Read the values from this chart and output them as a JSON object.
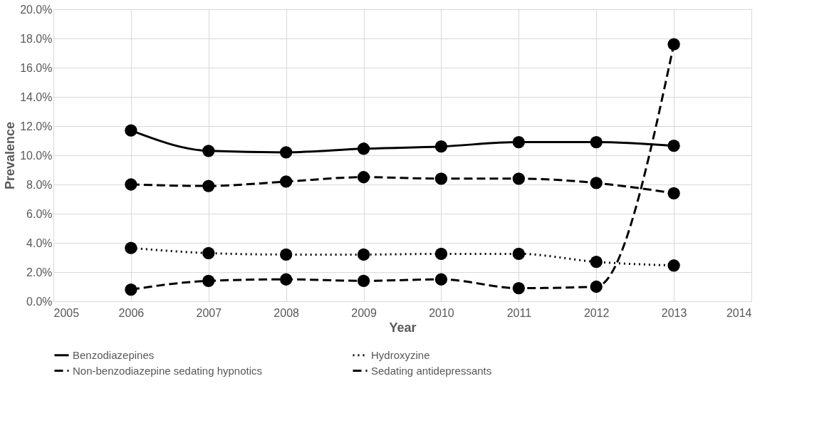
{
  "chart_data": {
    "type": "line",
    "xlabel": "Year",
    "ylabel": "Prevalence",
    "x": [
      2006,
      2007,
      2008,
      2009,
      2010,
      2011,
      2012,
      2013
    ],
    "xlim": [
      2005,
      2014
    ],
    "xticks": [
      2005,
      2006,
      2007,
      2008,
      2009,
      2010,
      2011,
      2012,
      2013,
      2014
    ],
    "ylim": [
      0,
      20
    ],
    "yticks": [
      {
        "value": 0,
        "label": "0.0%"
      },
      {
        "value": 2,
        "label": "2.0%"
      },
      {
        "value": 4,
        "label": "4.0%"
      },
      {
        "value": 6,
        "label": "6.0%"
      },
      {
        "value": 8,
        "label": "8.0%"
      },
      {
        "value": 10,
        "label": "10.0%"
      },
      {
        "value": 12,
        "label": "12.0%"
      },
      {
        "value": 14,
        "label": "14.0%"
      },
      {
        "value": 16,
        "label": "16.0%"
      },
      {
        "value": 18,
        "label": "18.0%"
      },
      {
        "value": 20,
        "label": "20.0%"
      }
    ],
    "grid": true,
    "legend": "bottom",
    "marker": "circle",
    "series": [
      {
        "name": "Benzodiazepines",
        "color": "#000000",
        "line_style": "solid",
        "values": [
          11.7,
          10.3,
          10.2,
          10.45,
          10.6,
          10.9,
          10.9,
          10.65
        ]
      },
      {
        "name": "Hydroxyzine",
        "color": "#000000",
        "line_style": "dotted",
        "values": [
          3.65,
          3.3,
          3.2,
          3.2,
          3.25,
          3.25,
          2.7,
          2.45
        ]
      },
      {
        "name": "Non-benzodiazepine sedating hypnotics",
        "color": "#000000",
        "line_style": "dashed",
        "values": [
          8.0,
          7.9,
          8.2,
          8.5,
          8.4,
          8.4,
          8.1,
          7.4
        ]
      },
      {
        "name": "Sedating antidepressants",
        "color": "#000000",
        "line_style": "dashed",
        "values": [
          0.8,
          1.4,
          1.5,
          1.4,
          1.5,
          0.9,
          1.0,
          17.6
        ]
      }
    ]
  }
}
